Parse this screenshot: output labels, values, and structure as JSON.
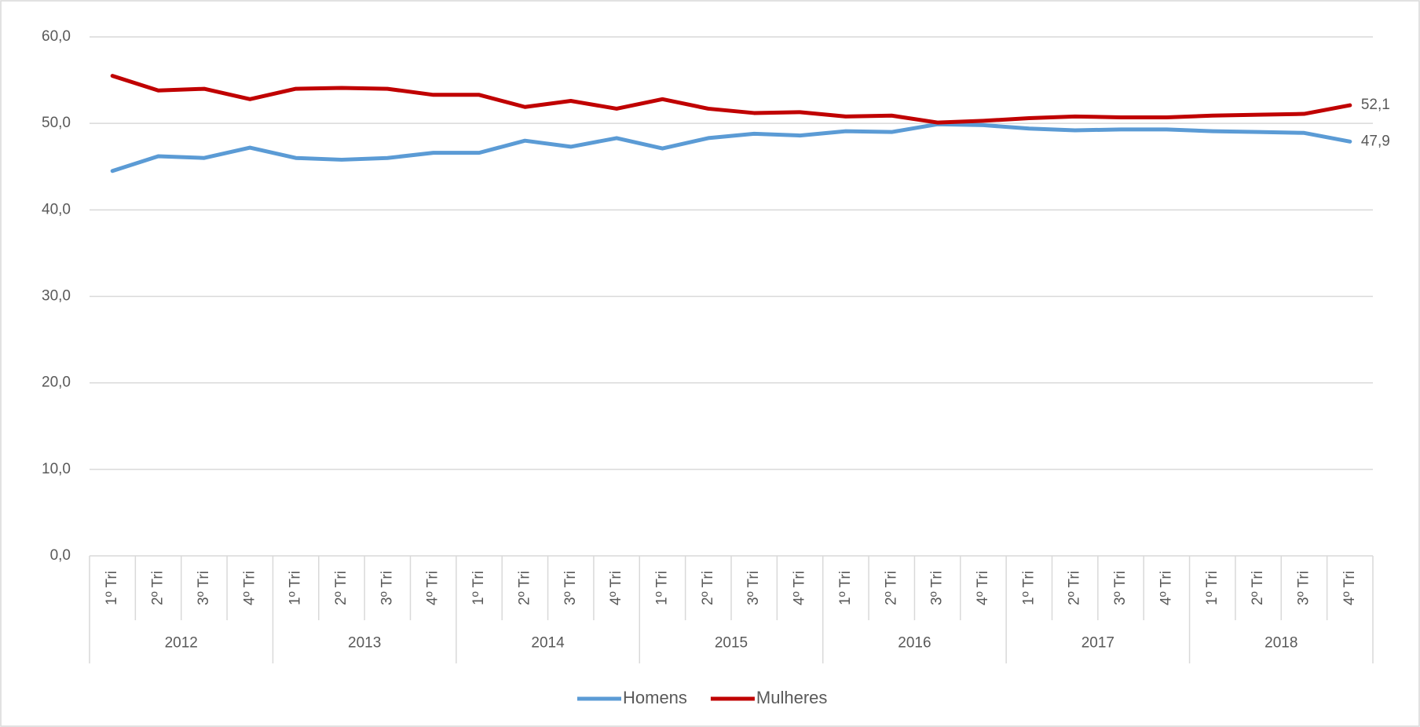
{
  "chart_data": {
    "type": "line",
    "categories": [
      "1º Tri",
      "2º Tri",
      "3º Tri",
      "4º Tri",
      "1º Tri",
      "2º Tri",
      "3º Tri",
      "4º Tri",
      "1º Tri",
      "2º Tri",
      "3º Tri",
      "4º Tri",
      "1º Tri",
      "2º Tri",
      "3º Tri",
      "4º Tri",
      "1º Tri",
      "2º Tri",
      "3º Tri",
      "4º Tri",
      "1º Tri",
      "2º Tri",
      "3º Tri",
      "4º Tri",
      "1º Tri",
      "2º Tri",
      "3º Tri",
      "4º Tri"
    ],
    "years": [
      "2012",
      "2013",
      "2014",
      "2015",
      "2016",
      "2017",
      "2018"
    ],
    "series": [
      {
        "name": "Homens",
        "color": "#5b9bd5",
        "values": [
          44.5,
          46.2,
          46.0,
          47.2,
          46.0,
          45.8,
          46.0,
          46.6,
          46.6,
          48.0,
          47.3,
          48.3,
          47.1,
          48.3,
          48.8,
          48.6,
          49.1,
          49.0,
          49.9,
          49.8,
          49.4,
          49.2,
          49.3,
          49.3,
          49.1,
          49.0,
          48.9,
          47.9
        ],
        "value_labels": [
          null,
          null,
          null,
          null,
          null,
          null,
          null,
          null,
          null,
          null,
          null,
          null,
          null,
          null,
          null,
          null,
          null,
          null,
          null,
          null,
          null,
          null,
          null,
          null,
          null,
          null,
          null,
          "47,9"
        ]
      },
      {
        "name": "Mulheres",
        "color": "#c00000",
        "values": [
          55.5,
          53.8,
          54.0,
          52.8,
          54.0,
          54.1,
          54.0,
          53.3,
          53.3,
          51.9,
          52.6,
          51.7,
          52.8,
          51.7,
          51.2,
          51.3,
          50.8,
          50.9,
          50.1,
          50.3,
          50.6,
          50.8,
          50.7,
          50.7,
          50.9,
          51.0,
          51.1,
          52.1
        ],
        "value_labels": [
          null,
          null,
          null,
          null,
          null,
          null,
          null,
          null,
          null,
          null,
          null,
          null,
          null,
          null,
          null,
          null,
          null,
          null,
          null,
          null,
          null,
          null,
          null,
          null,
          null,
          null,
          null,
          "52,1"
        ]
      }
    ],
    "ylim": [
      0,
      60
    ],
    "yticks": [
      {
        "value": 0,
        "label": "0,0"
      },
      {
        "value": 10,
        "label": "10,0"
      },
      {
        "value": 20,
        "label": "20,0"
      },
      {
        "value": 30,
        "label": "30,0"
      },
      {
        "value": 40,
        "label": "40,0"
      },
      {
        "value": 50,
        "label": "50,0"
      },
      {
        "value": 60,
        "label": "60,0"
      }
    ],
    "grid": true,
    "legend": "bottom"
  }
}
